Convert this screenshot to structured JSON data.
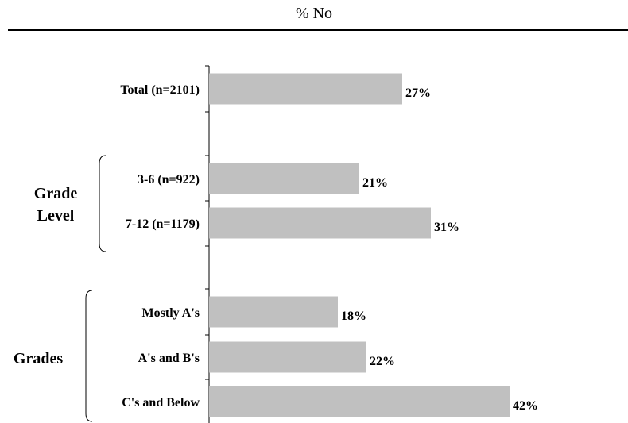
{
  "chart_data": {
    "type": "bar",
    "orientation": "horizontal",
    "title": "% No",
    "categories": [
      "Total (n=2101)",
      "3-6 (n=922)",
      "7-12 (n=1179)",
      "Mostly A's",
      "A's and B's",
      "C's and Below"
    ],
    "values": [
      27,
      21,
      31,
      18,
      22,
      42
    ],
    "value_labels": [
      "27%",
      "21%",
      "31%",
      "18%",
      "22%",
      "42%"
    ],
    "groups": [
      {
        "label_lines": [
          "Grade",
          "Level"
        ],
        "categories": [
          "3-6 (n=922)",
          "7-12 (n=1179)"
        ]
      },
      {
        "label_lines": [
          "Grades"
        ],
        "categories": [
          "Mostly A's",
          "A's and B's",
          "C's and Below"
        ]
      }
    ],
    "xlim": [
      0,
      50
    ],
    "bar_color": "#c0c0c0",
    "grid": false,
    "legend": "none"
  }
}
